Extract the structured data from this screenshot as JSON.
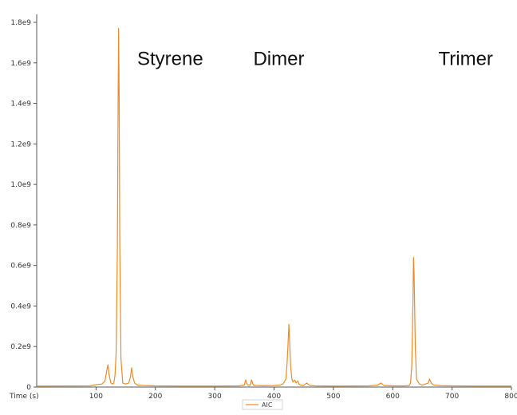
{
  "chart_data": {
    "type": "line",
    "title": "",
    "xlabel": "Time (s)",
    "ylabel": "",
    "xlim": [
      0,
      800
    ],
    "ylim": [
      0,
      1800000000
    ],
    "x_ticks": [
      100,
      200,
      300,
      400,
      500,
      600,
      700,
      800
    ],
    "x_tick_labels": [
      "100",
      "200",
      "300",
      "400",
      "500",
      "600",
      "700",
      "800"
    ],
    "y_ticks": [
      0,
      200000000,
      400000000,
      600000000,
      800000000,
      1000000000,
      1200000000,
      1400000000,
      1600000000,
      1800000000
    ],
    "y_tick_labels": [
      "0",
      "0.2e9",
      "0.4e9",
      "0.6e9",
      "0.8e9",
      "1.0e9",
      "1.2e9",
      "1.4e9",
      "1.6e9",
      "1.8e9"
    ],
    "grid": false,
    "legend": {
      "placement": "bottom-center",
      "entries": [
        "AIC"
      ]
    },
    "series": [
      {
        "name": "AIC",
        "color": "#F08A24",
        "x": [
          0,
          90,
          100,
          110,
          115,
          118,
          120,
          122,
          125,
          128,
          130,
          132,
          134,
          136,
          137,
          138,
          139,
          140,
          142,
          145,
          150,
          155,
          158,
          160,
          162,
          165,
          170,
          180,
          200,
          250,
          300,
          340,
          350,
          352,
          355,
          360,
          362,
          365,
          370,
          380,
          400,
          410,
          415,
          420,
          422,
          424,
          425,
          426,
          428,
          430,
          432,
          435,
          437,
          440,
          442,
          445,
          450,
          455,
          460,
          470,
          500,
          560,
          575,
          580,
          585,
          600,
          620,
          628,
          630,
          632,
          634,
          635,
          636,
          638,
          640,
          645,
          650,
          655,
          660,
          662,
          665,
          668,
          670,
          680,
          700,
          750,
          800
        ],
        "y": [
          5000000,
          6000000,
          12000000,
          15000000,
          30000000,
          80000000,
          110000000,
          60000000,
          20000000,
          15000000,
          20000000,
          60000000,
          180000000,
          700000000,
          1300000000,
          1770000000,
          1400000000,
          700000000,
          140000000,
          20000000,
          15000000,
          20000000,
          50000000,
          95000000,
          50000000,
          20000000,
          10000000,
          8000000,
          6000000,
          5000000,
          5000000,
          6000000,
          10000000,
          35000000,
          12000000,
          10000000,
          35000000,
          10000000,
          8000000,
          7000000,
          8000000,
          10000000,
          15000000,
          40000000,
          120000000,
          240000000,
          310000000,
          240000000,
          100000000,
          40000000,
          25000000,
          35000000,
          20000000,
          30000000,
          15000000,
          10000000,
          8000000,
          20000000,
          8000000,
          6000000,
          5000000,
          6000000,
          10000000,
          20000000,
          8000000,
          6000000,
          6000000,
          8000000,
          20000000,
          100000000,
          400000000,
          640000000,
          560000000,
          200000000,
          40000000,
          15000000,
          10000000,
          15000000,
          20000000,
          40000000,
          20000000,
          12000000,
          10000000,
          7000000,
          6000000,
          5000000,
          5000000
        ]
      }
    ],
    "annotations": [
      {
        "label": "Styrene",
        "x": 225,
        "y": 1590000000
      },
      {
        "label": "Dimer",
        "x": 408,
        "y": 1590000000
      },
      {
        "label": "Trimer",
        "x": 723,
        "y": 1590000000
      }
    ]
  }
}
